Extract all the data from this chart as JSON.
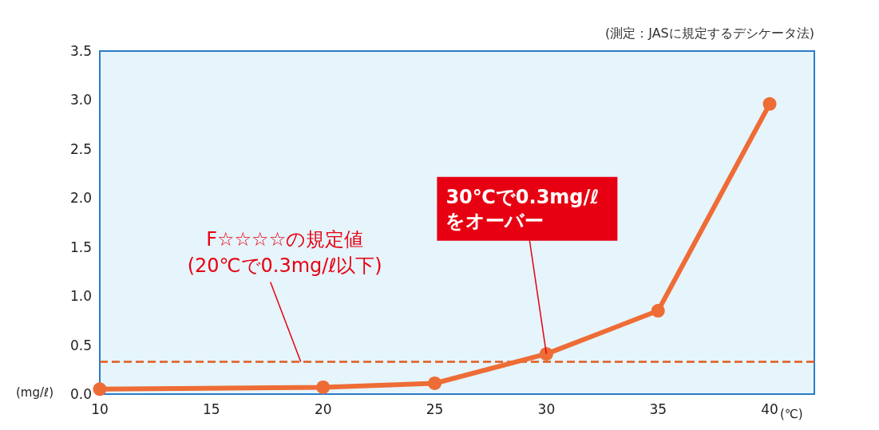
{
  "chart_data": {
    "type": "line",
    "xlabel": "(℃)",
    "ylabel": "(mg/ℓ)",
    "x": [
      10,
      20,
      25,
      30,
      35,
      40
    ],
    "series": [
      {
        "color": "#ee6c35",
        "values": [
          0.05,
          0.07,
          0.11,
          0.41,
          0.85,
          2.96
        ]
      }
    ],
    "xlim": [
      10,
      42
    ],
    "xticks": [
      10,
      15,
      20,
      25,
      30,
      35,
      40
    ],
    "ylim": [
      0,
      3.5
    ],
    "yticks": [
      {
        "value": 0,
        "label": "0.0"
      },
      0.5,
      {
        "value": 1,
        "label": "1.0"
      },
      1.5,
      {
        "value": 2,
        "label": "2.0"
      },
      2.5,
      {
        "value": 3,
        "label": "3.0"
      },
      3.5
    ],
    "grid": false,
    "marker": "circle",
    "line_style": "solid",
    "ref_lines": [
      {
        "axis": "y",
        "value": 0.33,
        "label": "F☆☆☆☆の規定値\n(20℃で0.3mg/ℓ以下)",
        "color": "#e05a1e",
        "line_style": "dashed"
      }
    ],
    "annotations": [
      "(測定：JASに規定するデシケータ法)",
      {
        "text": "30℃で0.3mg/ℓ\nをオーバー",
        "x": 30,
        "y": 0.41
      }
    ]
  }
}
